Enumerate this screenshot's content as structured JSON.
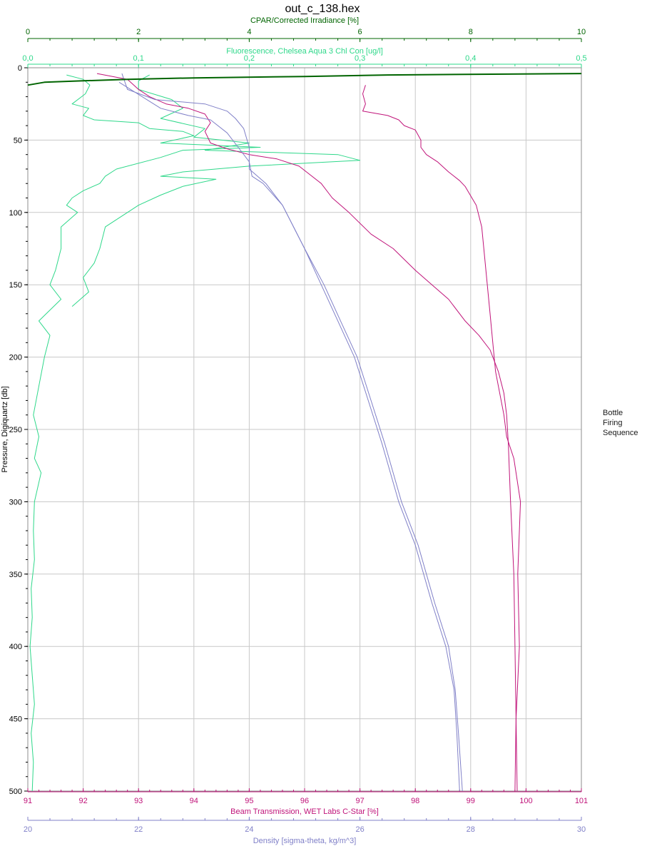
{
  "chart_data": {
    "type": "line",
    "title": "out_c_138.hex",
    "y_axis": {
      "label": "Pressure, Digiquartz [db]",
      "range": [
        0,
        500
      ],
      "inverted": true,
      "ticks": [
        0,
        50,
        100,
        150,
        200,
        250,
        300,
        350,
        400,
        450,
        500
      ],
      "color": "#000000"
    },
    "x_axes": [
      {
        "id": "cpar",
        "position": "top",
        "label": "CPAR/Corrected Irradiance [%]",
        "range": [
          0,
          10
        ],
        "ticks": [
          "0",
          "2",
          "4",
          "6",
          "8",
          "10"
        ],
        "color": "#006400"
      },
      {
        "id": "fluor",
        "position": "top",
        "label": "Fluorescence, Chelsea Aqua 3 Chl Con [ug/l]",
        "range": [
          0,
          0.5
        ],
        "ticks": [
          "0,0",
          "0,1",
          "0,2",
          "0,3",
          "0,4",
          "0,5"
        ],
        "color": "#2ed88a"
      },
      {
        "id": "beam",
        "position": "bottom",
        "label": "Beam Transmission, WET Labs C-Star [%]",
        "range": [
          91,
          101
        ],
        "ticks": [
          "91",
          "92",
          "93",
          "94",
          "95",
          "96",
          "97",
          "98",
          "99",
          "100",
          "101"
        ],
        "color": "#c0147a"
      },
      {
        "id": "density",
        "position": "bottom",
        "label": "Density [sigma-theta, kg/m^3]",
        "range": [
          20,
          30
        ],
        "ticks": [
          "20",
          "22",
          "24",
          "26",
          "28",
          "30"
        ],
        "color": "#8080c8"
      }
    ],
    "grid": true,
    "legend": {
      "placement": "right",
      "lines": [
        "Bottle",
        "Firing",
        "Sequence"
      ]
    },
    "series": [
      {
        "axis": "fluor",
        "color": "#2ed88a",
        "points": [
          [
            0.035,
            5
          ],
          [
            0.05,
            8
          ],
          [
            0.056,
            12
          ],
          [
            0.052,
            18
          ],
          [
            0.04,
            25
          ],
          [
            0.055,
            28
          ],
          [
            0.05,
            33
          ],
          [
            0.06,
            36
          ],
          [
            0.1,
            38
          ],
          [
            0.11,
            42
          ],
          [
            0.14,
            44
          ],
          [
            0.15,
            47
          ],
          [
            0.12,
            52
          ],
          [
            0.21,
            55
          ],
          [
            0.14,
            57
          ],
          [
            0.12,
            62
          ],
          [
            0.08,
            70
          ],
          [
            0.07,
            75
          ],
          [
            0.065,
            80
          ],
          [
            0.05,
            85
          ],
          [
            0.04,
            90
          ],
          [
            0.035,
            95
          ],
          [
            0.045,
            100
          ],
          [
            0.03,
            110
          ],
          [
            0.03,
            125
          ],
          [
            0.025,
            140
          ],
          [
            0.02,
            150
          ],
          [
            0.03,
            160
          ],
          [
            0.01,
            175
          ],
          [
            0.02,
            185
          ],
          [
            0.015,
            200
          ],
          [
            0.01,
            220
          ],
          [
            0.005,
            240
          ],
          [
            0.01,
            255
          ],
          [
            0.006,
            270
          ],
          [
            0.012,
            280
          ],
          [
            0.006,
            300
          ],
          [
            0.005,
            320
          ],
          [
            0.006,
            340
          ],
          [
            0.003,
            360
          ],
          [
            0.004,
            380
          ],
          [
            0.002,
            400
          ],
          [
            0.004,
            420
          ],
          [
            0.006,
            440
          ],
          [
            0.003,
            460
          ],
          [
            0.005,
            480
          ],
          [
            0.004,
            500
          ]
        ]
      },
      {
        "axis": "fluor",
        "color": "#2ed88a",
        "points": [
          [
            0.11,
            5
          ],
          [
            0.1,
            9
          ],
          [
            0.1,
            15
          ],
          [
            0.13,
            22
          ],
          [
            0.14,
            28
          ],
          [
            0.12,
            35
          ],
          [
            0.16,
            42
          ],
          [
            0.15,
            48
          ],
          [
            0.2,
            52
          ],
          [
            0.16,
            57
          ],
          [
            0.28,
            60
          ],
          [
            0.3,
            64
          ],
          [
            0.2,
            68
          ],
          [
            0.14,
            72
          ],
          [
            0.12,
            75
          ],
          [
            0.17,
            77
          ],
          [
            0.14,
            82
          ],
          [
            0.12,
            88
          ],
          [
            0.1,
            95
          ],
          [
            0.09,
            100
          ],
          [
            0.07,
            110
          ],
          [
            0.065,
            125
          ],
          [
            0.06,
            135
          ],
          [
            0.05,
            145
          ],
          [
            0.055,
            155
          ],
          [
            0.04,
            165
          ]
        ]
      },
      {
        "axis": "beam",
        "color": "#c0147a",
        "points": [
          [
            92.25,
            4
          ],
          [
            92.8,
            8
          ],
          [
            93.0,
            15
          ],
          [
            93.2,
            20
          ],
          [
            93.5,
            25
          ],
          [
            93.9,
            28
          ],
          [
            94.2,
            32
          ],
          [
            94.3,
            38
          ],
          [
            94.2,
            44
          ],
          [
            94.3,
            52
          ],
          [
            94.6,
            56
          ],
          [
            95.0,
            60
          ],
          [
            95.5,
            63
          ],
          [
            95.9,
            68
          ],
          [
            96.3,
            80
          ],
          [
            96.5,
            90
          ],
          [
            96.8,
            100
          ],
          [
            97.2,
            115
          ],
          [
            97.6,
            125
          ],
          [
            98.0,
            140
          ],
          [
            98.3,
            150
          ],
          [
            98.6,
            160
          ],
          [
            98.9,
            175
          ],
          [
            99.15,
            185
          ],
          [
            99.35,
            195
          ],
          [
            99.5,
            210
          ],
          [
            99.6,
            225
          ],
          [
            99.65,
            240
          ],
          [
            99.68,
            260
          ],
          [
            99.72,
            300
          ],
          [
            99.78,
            350
          ],
          [
            99.8,
            400
          ],
          [
            99.82,
            450
          ],
          [
            99.8,
            500
          ]
        ]
      },
      {
        "axis": "beam",
        "color": "#c0147a",
        "points": [
          [
            97.1,
            12
          ],
          [
            97.05,
            18
          ],
          [
            97.1,
            25
          ],
          [
            97.05,
            30
          ],
          [
            97.5,
            33
          ],
          [
            97.7,
            36
          ],
          [
            97.8,
            40
          ],
          [
            98.0,
            43
          ],
          [
            98.1,
            50
          ],
          [
            98.1,
            55
          ],
          [
            98.2,
            60
          ],
          [
            98.4,
            65
          ],
          [
            98.6,
            72
          ],
          [
            98.8,
            78
          ],
          [
            98.9,
            82
          ],
          [
            99.1,
            95
          ],
          [
            99.2,
            110
          ],
          [
            99.25,
            130
          ],
          [
            99.3,
            150
          ],
          [
            99.35,
            170
          ],
          [
            99.4,
            190
          ],
          [
            99.45,
            210
          ],
          [
            99.5,
            220
          ],
          [
            99.6,
            240
          ],
          [
            99.65,
            255
          ],
          [
            99.78,
            270
          ],
          [
            99.9,
            300
          ],
          [
            99.85,
            350
          ],
          [
            99.88,
            400
          ],
          [
            99.82,
            450
          ],
          [
            99.84,
            500
          ]
        ]
      },
      {
        "axis": "density",
        "color": "#8080c8",
        "points": [
          [
            21.7,
            4
          ],
          [
            21.8,
            15
          ],
          [
            22.3,
            22
          ],
          [
            23.2,
            25
          ],
          [
            23.6,
            30
          ],
          [
            23.75,
            35
          ],
          [
            23.9,
            42
          ],
          [
            24.0,
            55
          ],
          [
            24.0,
            70
          ],
          [
            24.3,
            80
          ],
          [
            24.6,
            95
          ],
          [
            25.0,
            125
          ],
          [
            25.3,
            150
          ],
          [
            25.6,
            175
          ],
          [
            25.9,
            200
          ],
          [
            26.15,
            230
          ],
          [
            26.4,
            260
          ],
          [
            26.7,
            300
          ],
          [
            27.0,
            330
          ],
          [
            27.3,
            370
          ],
          [
            27.55,
            400
          ],
          [
            27.7,
            430
          ],
          [
            27.75,
            460
          ],
          [
            27.8,
            500
          ]
        ]
      },
      {
        "axis": "density",
        "color": "#8080c8",
        "points": [
          [
            21.65,
            10
          ],
          [
            22.4,
            28
          ],
          [
            22.9,
            33
          ],
          [
            23.3,
            36
          ],
          [
            23.6,
            45
          ],
          [
            23.8,
            55
          ],
          [
            24.0,
            65
          ],
          [
            24.05,
            75
          ],
          [
            24.25,
            80
          ],
          [
            24.6,
            95
          ],
          [
            25.0,
            125
          ],
          [
            25.35,
            150
          ],
          [
            25.65,
            175
          ],
          [
            25.95,
            200
          ],
          [
            26.2,
            230
          ],
          [
            26.45,
            260
          ],
          [
            26.75,
            300
          ],
          [
            27.05,
            330
          ],
          [
            27.35,
            370
          ],
          [
            27.6,
            400
          ],
          [
            27.72,
            430
          ],
          [
            27.78,
            460
          ],
          [
            27.85,
            500
          ]
        ]
      },
      {
        "axis": "cpar",
        "color": "#006400",
        "points": [
          [
            10,
            4
          ],
          [
            6.5,
            5
          ],
          [
            5,
            6
          ],
          [
            3,
            7
          ],
          [
            1.8,
            8
          ],
          [
            1,
            9
          ],
          [
            0.3,
            10
          ],
          [
            0,
            12
          ]
        ]
      }
    ]
  }
}
